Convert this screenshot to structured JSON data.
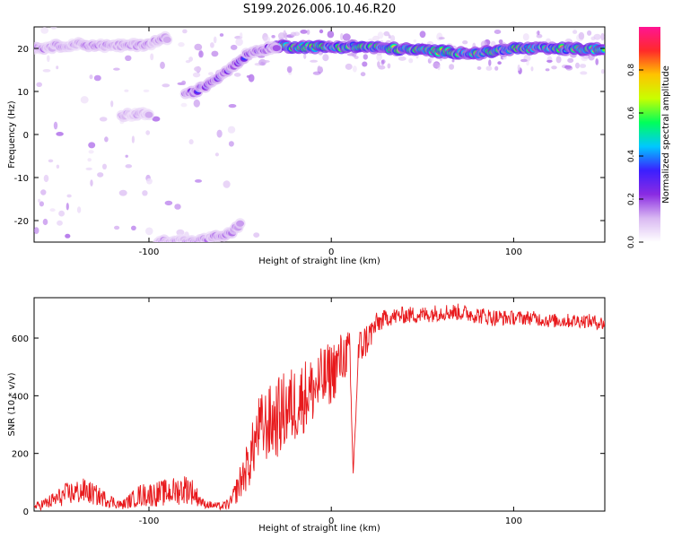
{
  "title": "S199.2026.006.10.46.R20",
  "chart_data": [
    {
      "type": "heatmap",
      "xlabel": "Height of straight line (km)",
      "ylabel": "Frequency (Hz)",
      "xlim": [
        -163,
        150
      ],
      "ylim": [
        -25,
        25
      ],
      "xticks": [
        -100,
        0,
        100
      ],
      "yticks": [
        -20,
        -10,
        0,
        10,
        20
      ],
      "colorbar": {
        "label": "Normalized spectral amplitude",
        "range": [
          0,
          1
        ],
        "ticks": [
          0.0,
          0.2,
          0.4,
          0.6,
          0.8
        ],
        "colormap": [
          "#ffffff",
          "#d9b8f2",
          "#8a2be2",
          "#3b1fff",
          "#00c8ff",
          "#00ff5a",
          "#c8ff00",
          "#ffc400",
          "#ff2a2a",
          "#ff1493"
        ]
      },
      "features": [
        {
          "name": "main band",
          "x": [
            -30,
            0,
            10,
            40,
            80,
            100,
            150
          ],
          "y": [
            20.5,
            20.3,
            20.5,
            19.8,
            18.8,
            20.0,
            19.8
          ],
          "amplitude": 0.85
        },
        {
          "name": "rising branch",
          "x": [
            -80,
            -70,
            -60,
            -45,
            -30
          ],
          "y": [
            9,
            11,
            14,
            19,
            20.5
          ],
          "amplitude": 0.35
        },
        {
          "name": "upper noise",
          "x": [
            -163,
            -140,
            -120,
            -100,
            -90
          ],
          "y": [
            20,
            21,
            20.5,
            21,
            22.5
          ],
          "amplitude": 0.25
        },
        {
          "name": "lower branch",
          "x": [
            -95,
            -85,
            -75,
            -65,
            -55,
            -50
          ],
          "y": [
            -25,
            -24.5,
            -25,
            -24,
            -23,
            -21
          ],
          "amplitude": 0.25
        },
        {
          "name": "mid patch",
          "x": [
            -115,
            -100
          ],
          "y": [
            4.5,
            4.8
          ],
          "amplitude": 0.2
        }
      ]
    },
    {
      "type": "line",
      "xlabel": "Height of straight line (km)",
      "ylabel": "SNR (10 * v/v)",
      "xlim": [
        -163,
        150
      ],
      "ylim": [
        0,
        740
      ],
      "xticks": [
        -100,
        0,
        100
      ],
      "yticks": [
        0,
        200,
        400,
        600
      ],
      "color": "#e8191c",
      "x": [
        -163,
        -155,
        -145,
        -135,
        -125,
        -115,
        -105,
        -95,
        -85,
        -78,
        -70,
        -60,
        -55,
        -50,
        -45,
        -40,
        -35,
        -30,
        -25,
        -20,
        -15,
        -10,
        -5,
        0,
        5,
        10,
        12,
        15,
        20,
        25,
        30,
        40,
        50,
        60,
        70,
        80,
        90,
        100,
        110,
        120,
        130,
        140,
        150
      ],
      "y": [
        15,
        30,
        60,
        70,
        45,
        20,
        55,
        60,
        70,
        80,
        25,
        15,
        30,
        100,
        170,
        280,
        300,
        320,
        350,
        370,
        400,
        420,
        450,
        480,
        520,
        560,
        130,
        560,
        600,
        650,
        670,
        680,
        680,
        690,
        690,
        680,
        670,
        670,
        670,
        660,
        660,
        660,
        650
      ],
      "noise_amplitude": [
        12,
        25,
        40,
        45,
        30,
        15,
        40,
        45,
        50,
        55,
        15,
        12,
        25,
        60,
        90,
        120,
        130,
        140,
        140,
        140,
        130,
        120,
        120,
        110,
        100,
        70,
        0,
        70,
        60,
        40,
        30,
        30,
        30,
        30,
        30,
        30,
        30,
        25,
        25,
        25,
        25,
        25,
        25
      ]
    }
  ]
}
